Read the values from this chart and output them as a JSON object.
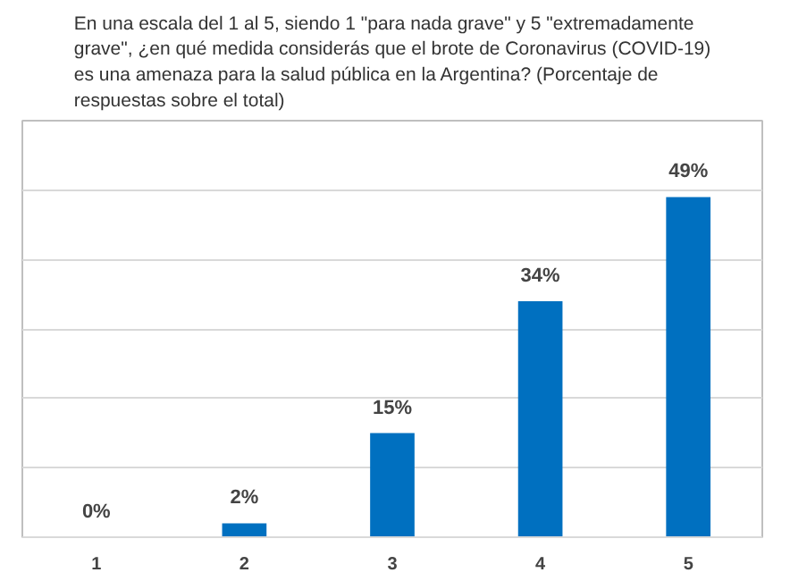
{
  "chart_data": {
    "type": "bar",
    "title": "En una escala del 1 al 5, siendo 1 \"para nada grave\" y 5 \"extremadamente grave\", ¿en qué medida considerás que el brote de Coronavirus (COVID-19) es una amenaza para la salud pública en la Argentina? (Porcentaje de respuestas sobre el total)",
    "categories": [
      "1",
      "2",
      "3",
      "4",
      "5"
    ],
    "values": [
      0,
      2,
      15,
      34,
      49
    ],
    "value_labels": [
      "0%",
      "2%",
      "15%",
      "34%",
      "49%"
    ],
    "color": "#0070c0",
    "ylim": [
      0,
      60
    ],
    "yticks": [
      {
        "value": 0,
        "label": null
      },
      {
        "value": 10,
        "label": null
      },
      {
        "value": 20,
        "label": null
      },
      {
        "value": 30,
        "label": null
      },
      {
        "value": 40,
        "label": null
      },
      {
        "value": 50,
        "label": null
      },
      {
        "value": 60,
        "label": null
      }
    ],
    "grid": "y",
    "tick_labels": "x"
  }
}
